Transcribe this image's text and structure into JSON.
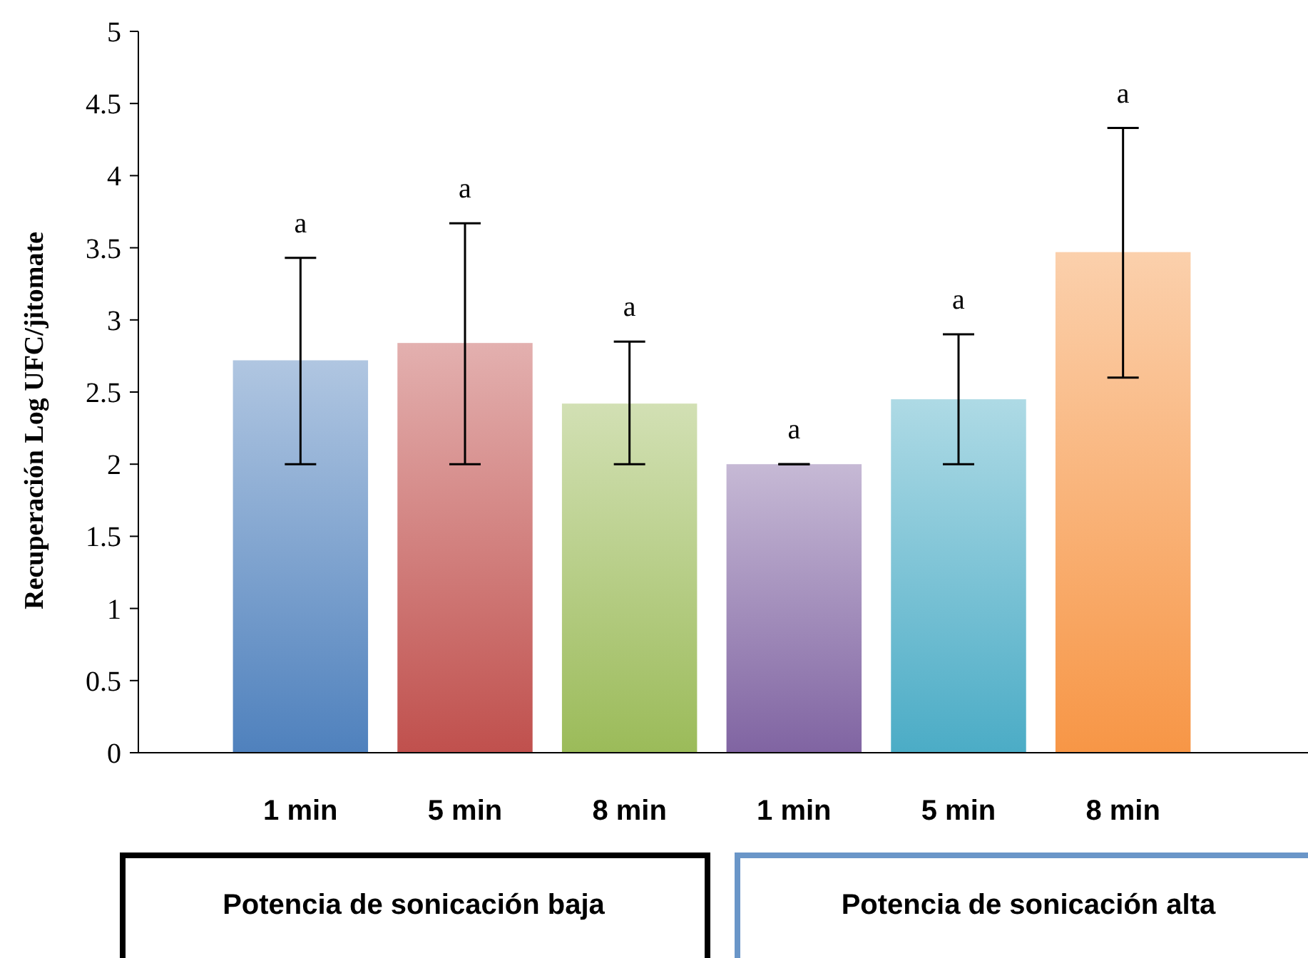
{
  "chart_data": {
    "type": "bar",
    "ylabel": "Recuperación  Log UFC/jitomate",
    "categories": [
      "1 min",
      "5 min",
      "8 min",
      "1 min",
      "5 min",
      "8 min"
    ],
    "values": [
      2.72,
      2.84,
      2.42,
      2.0,
      2.45,
      3.47
    ],
    "colors": [
      "#4f81bd",
      "#c0504d",
      "#9bbb59",
      "#8064a2",
      "#4bacc6",
      "#f79646"
    ],
    "errors": [
      [
        2.0,
        3.43
      ],
      [
        2.0,
        3.67
      ],
      [
        2.0,
        2.85
      ],
      [
        2.0,
        2.0
      ],
      [
        2.0,
        2.9
      ],
      [
        2.6,
        4.33
      ]
    ],
    "ylim": [
      0,
      5
    ],
    "yticks": [
      0,
      0.5,
      1,
      1.5,
      2,
      2.5,
      3,
      3.5,
      4,
      4.5,
      5
    ],
    "annotations": [
      "Potencia de sonicación baja",
      "Potencia de sonicación alta",
      "a",
      "a",
      "a",
      "a",
      "a",
      "a"
    ],
    "grid": false
  }
}
